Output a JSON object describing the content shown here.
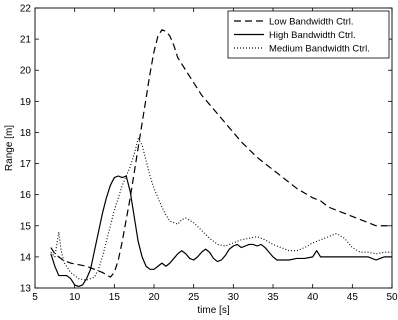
{
  "chart_data": {
    "type": "line",
    "title": "",
    "xlabel": "time [s]",
    "ylabel": "Range [m]",
    "xlim": [
      5,
      50
    ],
    "ylim": [
      13,
      22
    ],
    "xticks": [
      "5",
      "10",
      "15",
      "20",
      "25",
      "30",
      "35",
      "40",
      "45",
      "50"
    ],
    "yticks": [
      "13",
      "14",
      "15",
      "16",
      "17",
      "18",
      "19",
      "20",
      "21",
      "22"
    ],
    "legend_position": "top-right",
    "grid": false,
    "series": [
      {
        "name": "Low Bandwidth Ctrl.",
        "style": "dashed",
        "color": "#000000",
        "points": [
          [
            7,
            14.3
          ],
          [
            7.5,
            14.1
          ],
          [
            8.5,
            13.9
          ],
          [
            9.5,
            13.8
          ],
          [
            10.5,
            13.75
          ],
          [
            11.5,
            13.7
          ],
          [
            12.5,
            13.6
          ],
          [
            13.5,
            13.5
          ],
          [
            14.5,
            13.35
          ],
          [
            15,
            13.5
          ],
          [
            15.5,
            13.9
          ],
          [
            16,
            14.5
          ],
          [
            16.5,
            15.2
          ],
          [
            17,
            15.9
          ],
          [
            17.5,
            16.7
          ],
          [
            18,
            17.5
          ],
          [
            18.5,
            18.3
          ],
          [
            19,
            19.1
          ],
          [
            19.5,
            19.9
          ],
          [
            20,
            20.6
          ],
          [
            20.5,
            21.1
          ],
          [
            21,
            21.3
          ],
          [
            21.5,
            21.25
          ],
          [
            22,
            21.1
          ],
          [
            22.5,
            20.8
          ],
          [
            23,
            20.4
          ],
          [
            24,
            20.0
          ],
          [
            25,
            19.6
          ],
          [
            26,
            19.2
          ],
          [
            27,
            18.9
          ],
          [
            28,
            18.6
          ],
          [
            29,
            18.3
          ],
          [
            30,
            18.0
          ],
          [
            31,
            17.7
          ],
          [
            32,
            17.45
          ],
          [
            33,
            17.2
          ],
          [
            34,
            17.0
          ],
          [
            35,
            16.8
          ],
          [
            36,
            16.6
          ],
          [
            37,
            16.4
          ],
          [
            38,
            16.2
          ],
          [
            39,
            16.05
          ],
          [
            40,
            15.9
          ],
          [
            41,
            15.8
          ],
          [
            42,
            15.6
          ],
          [
            43,
            15.5
          ],
          [
            44,
            15.4
          ],
          [
            45,
            15.3
          ],
          [
            46,
            15.2
          ],
          [
            47,
            15.1
          ],
          [
            48,
            15.0
          ],
          [
            49,
            15.0
          ],
          [
            50,
            15.0
          ]
        ]
      },
      {
        "name": "High Bandwidth Ctrl.",
        "style": "solid",
        "color": "#000000",
        "points": [
          [
            7,
            14.1
          ],
          [
            7.5,
            13.7
          ],
          [
            8,
            13.4
          ],
          [
            8.5,
            13.4
          ],
          [
            9,
            13.4
          ],
          [
            9.5,
            13.3
          ],
          [
            10,
            13.1
          ],
          [
            10.5,
            13.05
          ],
          [
            11,
            13.1
          ],
          [
            11.5,
            13.3
          ],
          [
            12,
            13.6
          ],
          [
            12.5,
            14.2
          ],
          [
            13,
            14.8
          ],
          [
            13.5,
            15.4
          ],
          [
            14,
            15.9
          ],
          [
            14.5,
            16.3
          ],
          [
            15,
            16.55
          ],
          [
            15.5,
            16.6
          ],
          [
            16,
            16.55
          ],
          [
            16.5,
            16.6
          ],
          [
            17,
            16.1
          ],
          [
            17.5,
            15.3
          ],
          [
            18,
            14.5
          ],
          [
            18.5,
            14.0
          ],
          [
            19,
            13.7
          ],
          [
            19.5,
            13.6
          ],
          [
            20,
            13.6
          ],
          [
            20.5,
            13.7
          ],
          [
            21,
            13.8
          ],
          [
            21.5,
            13.7
          ],
          [
            22,
            13.8
          ],
          [
            22.5,
            13.95
          ],
          [
            23,
            14.1
          ],
          [
            23.5,
            14.2
          ],
          [
            24,
            14.1
          ],
          [
            24.5,
            13.95
          ],
          [
            25,
            13.9
          ],
          [
            25.5,
            14.0
          ],
          [
            26,
            14.15
          ],
          [
            26.5,
            14.25
          ],
          [
            27,
            14.15
          ],
          [
            27.5,
            13.95
          ],
          [
            28,
            13.85
          ],
          [
            28.5,
            13.9
          ],
          [
            29,
            14.05
          ],
          [
            29.5,
            14.25
          ],
          [
            30,
            14.35
          ],
          [
            30.5,
            14.4
          ],
          [
            31,
            14.3
          ],
          [
            31.5,
            14.35
          ],
          [
            32,
            14.4
          ],
          [
            32.5,
            14.4
          ],
          [
            33,
            14.35
          ],
          [
            33.5,
            14.4
          ],
          [
            34,
            14.3
          ],
          [
            34.5,
            14.15
          ],
          [
            35,
            14.0
          ],
          [
            35.5,
            13.9
          ],
          [
            36,
            13.9
          ],
          [
            37,
            13.9
          ],
          [
            38,
            13.95
          ],
          [
            39,
            13.95
          ],
          [
            40,
            14.0
          ],
          [
            40.5,
            14.2
          ],
          [
            41,
            14.0
          ],
          [
            42,
            14.0
          ],
          [
            43,
            14.0
          ],
          [
            44,
            14.0
          ],
          [
            45,
            14.0
          ],
          [
            46,
            14.0
          ],
          [
            47,
            14.0
          ],
          [
            48,
            13.9
          ],
          [
            49,
            14.0
          ],
          [
            50,
            14.0
          ]
        ]
      },
      {
        "name": "Medium Bandwidth Ctrl.",
        "style": "dotted",
        "color": "#000000",
        "points": [
          [
            7,
            14.15
          ],
          [
            7.5,
            14.0
          ],
          [
            8,
            14.8
          ],
          [
            8.3,
            14.2
          ],
          [
            8.7,
            13.8
          ],
          [
            9.5,
            13.5
          ],
          [
            10.5,
            13.3
          ],
          [
            11.5,
            13.25
          ],
          [
            12.5,
            13.35
          ],
          [
            13,
            13.6
          ],
          [
            13.5,
            14.0
          ],
          [
            14,
            14.5
          ],
          [
            14.5,
            15.0
          ],
          [
            15,
            15.5
          ],
          [
            15.5,
            15.9
          ],
          [
            16,
            16.3
          ],
          [
            16.5,
            16.6
          ],
          [
            17,
            16.9
          ],
          [
            17.5,
            17.3
          ],
          [
            18,
            17.8
          ],
          [
            18.5,
            17.6
          ],
          [
            19,
            17.1
          ],
          [
            19.5,
            16.6
          ],
          [
            20,
            16.2
          ],
          [
            20.5,
            15.9
          ],
          [
            21,
            15.6
          ],
          [
            21.5,
            15.35
          ],
          [
            22,
            15.15
          ],
          [
            23,
            15.05
          ],
          [
            23.5,
            15.2
          ],
          [
            24,
            15.25
          ],
          [
            25,
            15.1
          ],
          [
            26,
            14.85
          ],
          [
            27,
            14.6
          ],
          [
            28,
            14.4
          ],
          [
            29,
            14.35
          ],
          [
            30,
            14.45
          ],
          [
            31,
            14.55
          ],
          [
            32,
            14.6
          ],
          [
            33,
            14.65
          ],
          [
            34,
            14.55
          ],
          [
            35,
            14.4
          ],
          [
            36,
            14.3
          ],
          [
            37,
            14.2
          ],
          [
            38,
            14.2
          ],
          [
            39,
            14.3
          ],
          [
            40,
            14.45
          ],
          [
            41,
            14.55
          ],
          [
            42,
            14.65
          ],
          [
            43,
            14.75
          ],
          [
            44,
            14.6
          ],
          [
            45,
            14.3
          ],
          [
            46,
            14.15
          ],
          [
            47,
            14.15
          ],
          [
            48,
            14.1
          ],
          [
            49,
            14.15
          ],
          [
            50,
            14.15
          ]
        ]
      }
    ]
  }
}
